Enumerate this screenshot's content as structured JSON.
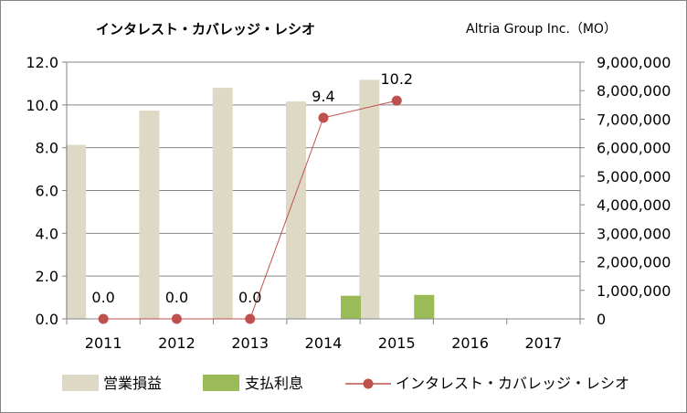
{
  "title": "インタレスト・カバレッジ・レシオ",
  "company": "Altria Group Inc.（MO）",
  "chart_data": {
    "type": "bar",
    "categories": [
      "2011",
      "2012",
      "2013",
      "2014",
      "2015",
      "2016",
      "2017"
    ],
    "y_left": {
      "min": 0,
      "max": 12,
      "ticks": [
        "0.0",
        "2.0",
        "4.0",
        "6.0",
        "8.0",
        "10.0",
        "12.0"
      ]
    },
    "y_right": {
      "min": 0,
      "max": 9000000,
      "ticks": [
        "0",
        "1,000,000",
        "2,000,000",
        "3,000,000",
        "4,000,000",
        "5,000,000",
        "6,000,000",
        "7,000,000",
        "8,000,000",
        "9,000,000"
      ]
    },
    "series": [
      {
        "name": "営業損益",
        "kind": "bar",
        "axis": "right",
        "color": "#ddd9c4",
        "values": [
          6100000,
          7300000,
          8100000,
          7620000,
          8380000,
          null,
          null
        ]
      },
      {
        "name": "支払利息",
        "kind": "bar",
        "axis": "right",
        "color": "#9bbb59",
        "values": [
          null,
          null,
          null,
          810000,
          840000,
          null,
          null
        ]
      },
      {
        "name": "インタレスト・カバレッジ・レシオ",
        "kind": "line",
        "axis": "left",
        "color": "#c0504d",
        "values": [
          0.0,
          0.0,
          0.0,
          9.4,
          10.2,
          null,
          null
        ],
        "labels": [
          "0.0",
          "0.0",
          "0.0",
          "9.4",
          "10.2",
          "",
          ""
        ]
      }
    ],
    "grid": true,
    "legend_position": "bottom"
  }
}
